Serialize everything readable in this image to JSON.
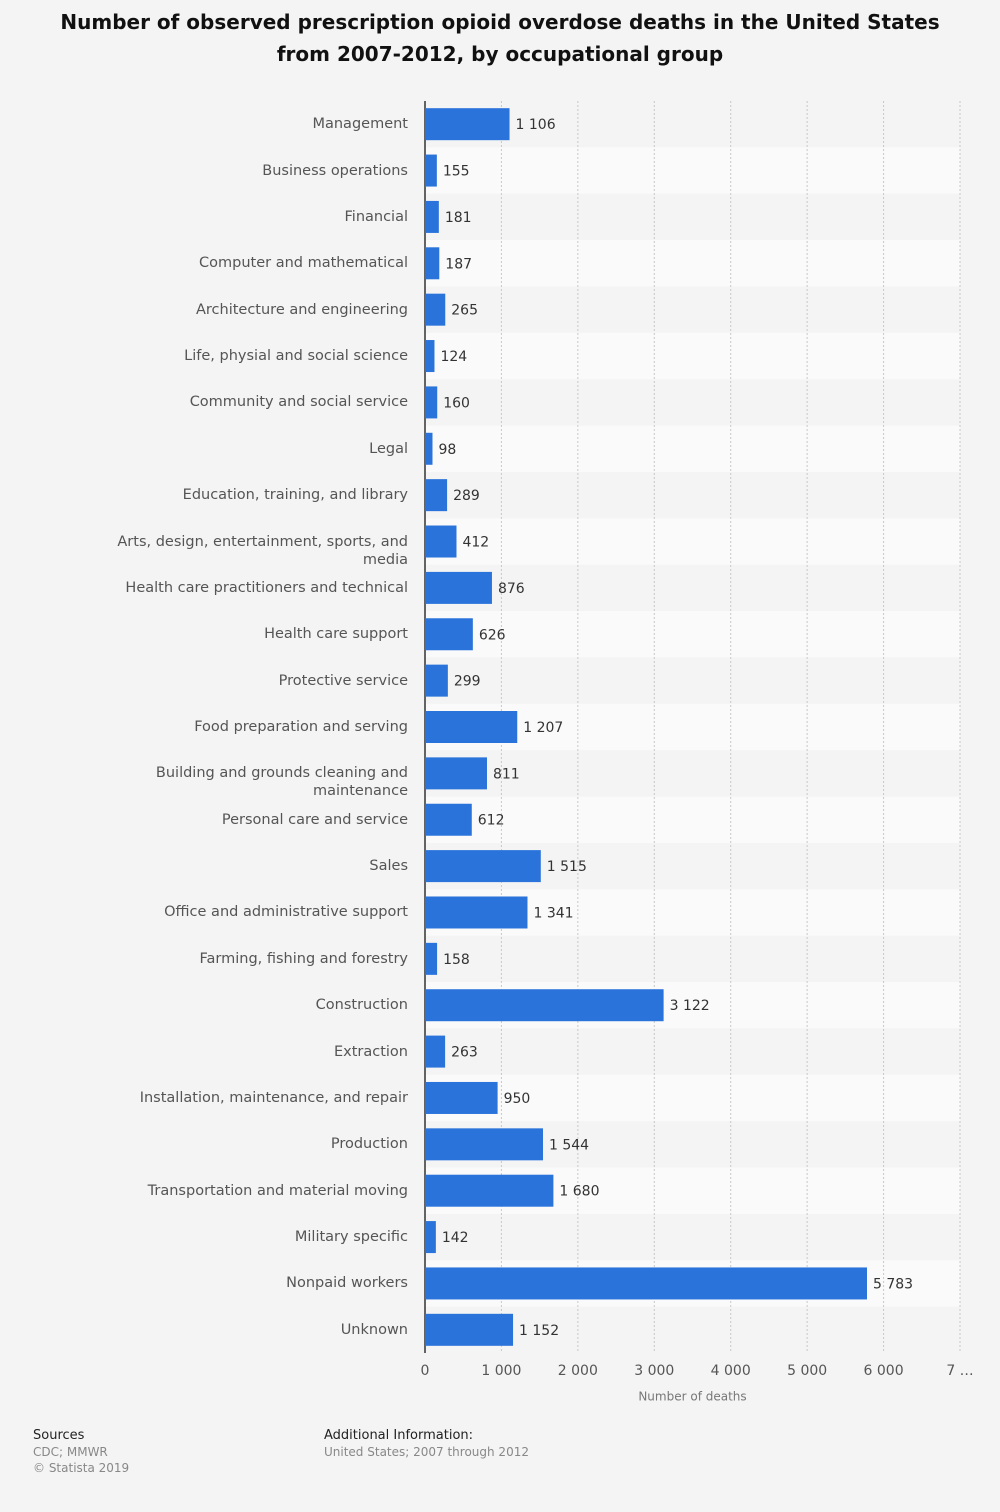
{
  "chart_data": {
    "type": "bar",
    "title": "Number of observed prescription opioid overdose deaths in the United States from 2007-2012, by occupational group",
    "x_label": "Number of deaths",
    "categories": [
      "Management",
      "Business operations",
      "Financial",
      "Computer and mathematical",
      "Architecture and engineering",
      "Life, physial and social science",
      "Community and social service",
      "Legal",
      "Education, training, and library",
      "Arts, design, entertainment, sports, and media",
      "Health care practitioners and technical",
      "Health care support",
      "Protective service",
      "Food preparation and serving",
      "Building and grounds cleaning and maintenance",
      "Personal care and service",
      "Sales",
      "Office and administrative support",
      "Farming, fishing and forestry",
      "Construction",
      "Extraction",
      "Installation, maintenance, and repair",
      "Production",
      "Transportation and material moving",
      "Military specific",
      "Nonpaid workers",
      "Unknown"
    ],
    "values": [
      1106,
      155,
      181,
      187,
      265,
      124,
      160,
      98,
      289,
      412,
      876,
      626,
      299,
      1207,
      811,
      612,
      1515,
      1341,
      158,
      3122,
      263,
      950,
      1544,
      1680,
      142,
      5783,
      1152
    ],
    "value_labels": [
      "1 106",
      "155",
      "181",
      "187",
      "265",
      "124",
      "160",
      "98",
      "289",
      "412",
      "876",
      "626",
      "299",
      "1 207",
      "811",
      "612",
      "1 515",
      "1 341",
      "158",
      "3 122",
      "263",
      "950",
      "1 544",
      "1 680",
      "142",
      "5 783",
      "1 152"
    ],
    "color": "#2a73db",
    "xlim": [
      0,
      7000
    ],
    "xticks": [
      0,
      {
        "value": 1000,
        "label": "1 000"
      },
      {
        "value": 2000,
        "label": "2 000"
      },
      {
        "value": 3000,
        "label": "3 000"
      },
      {
        "value": 4000,
        "label": "4 000"
      },
      {
        "value": 5000,
        "label": "5 000"
      },
      {
        "value": 6000,
        "label": "6 000"
      },
      {
        "value": 7000,
        "label": "7 …"
      }
    ],
    "grid": true
  },
  "footer": {
    "sources_heading": "Sources",
    "sources": "CDC; MMWR",
    "copyright": "© Statista 2019",
    "info_heading": "Additional Information:",
    "info": "United States; 2007 through 2012"
  }
}
